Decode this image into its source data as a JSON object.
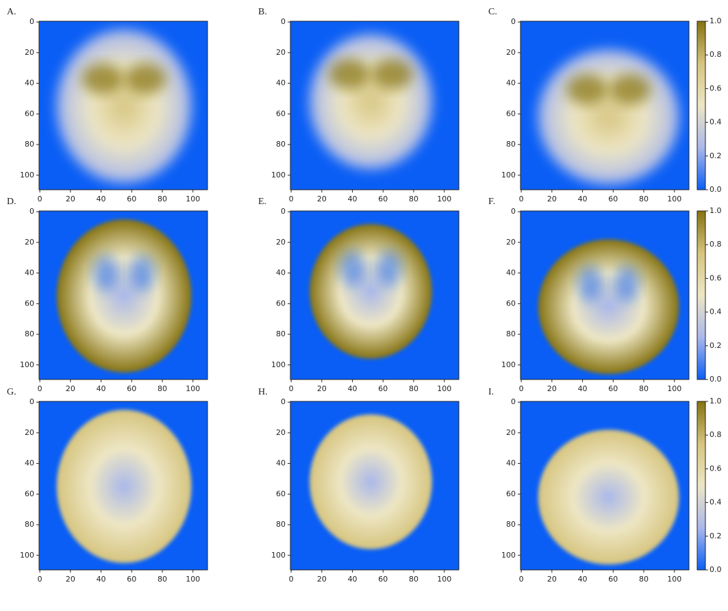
{
  "chart_data": [
    {
      "type": "heatmap",
      "label": "A.",
      "xlim": [
        -0.5,
        109.5
      ],
      "ylim": [
        109.5,
        -0.5
      ],
      "xticks": [
        0,
        20,
        40,
        60,
        80,
        100
      ],
      "yticks": [
        0,
        20,
        40,
        60,
        80,
        100
      ]
    },
    {
      "type": "heatmap",
      "label": "B.",
      "xlim": [
        -0.5,
        109.5
      ],
      "ylim": [
        109.5,
        -0.5
      ],
      "xticks": [
        0,
        20,
        40,
        60,
        80,
        100
      ],
      "yticks": [
        0,
        20,
        40,
        60,
        80,
        100
      ]
    },
    {
      "type": "heatmap",
      "label": "C.",
      "xlim": [
        -0.5,
        109.5
      ],
      "ylim": [
        109.5,
        -0.5
      ],
      "xticks": [
        0,
        20,
        40,
        60,
        80,
        100
      ],
      "yticks": [
        0,
        20,
        40,
        60,
        80,
        100
      ],
      "colorbar": {
        "colormap": [
          "#0a5ef5",
          "#aab8ea",
          "#ede6c4",
          "#d6c47e",
          "#857210"
        ],
        "ylim": [
          0,
          1
        ],
        "yticks": [
          {
            "value": 0,
            "label": "0.0"
          },
          {
            "value": 0.2,
            "label": "0.2"
          },
          {
            "value": 0.4,
            "label": "0.4"
          },
          {
            "value": 0.6,
            "label": "0.6"
          },
          {
            "value": 0.8,
            "label": "0.8"
          },
          {
            "value": 1,
            "label": "1.0"
          }
        ]
      }
    },
    {
      "type": "heatmap",
      "label": "D.",
      "xlim": [
        -0.5,
        109.5
      ],
      "ylim": [
        109.5,
        -0.5
      ],
      "xticks": [
        0,
        20,
        40,
        60,
        80,
        100
      ],
      "yticks": [
        0,
        20,
        40,
        60,
        80,
        100
      ]
    },
    {
      "type": "heatmap",
      "label": "E.",
      "xlim": [
        -0.5,
        109.5
      ],
      "ylim": [
        109.5,
        -0.5
      ],
      "xticks": [
        0,
        20,
        40,
        60,
        80,
        100
      ],
      "yticks": [
        0,
        20,
        40,
        60,
        80,
        100
      ]
    },
    {
      "type": "heatmap",
      "label": "F.",
      "xlim": [
        -0.5,
        109.5
      ],
      "ylim": [
        109.5,
        -0.5
      ],
      "xticks": [
        0,
        20,
        40,
        60,
        80,
        100
      ],
      "yticks": [
        0,
        20,
        40,
        60,
        80,
        100
      ],
      "colorbar": {
        "colormap": [
          "#0a5ef5",
          "#aab8ea",
          "#ede6c4",
          "#d6c47e",
          "#857210"
        ],
        "ylim": [
          0,
          1
        ],
        "yticks": [
          {
            "value": 0,
            "label": "0.0"
          },
          {
            "value": 0.2,
            "label": "0.2"
          },
          {
            "value": 0.4,
            "label": "0.4"
          },
          {
            "value": 0.6,
            "label": "0.6"
          },
          {
            "value": 0.8,
            "label": "0.8"
          },
          {
            "value": 1,
            "label": "1.0"
          }
        ]
      }
    },
    {
      "type": "heatmap",
      "label": "G.",
      "xlim": [
        -0.5,
        109.5
      ],
      "ylim": [
        109.5,
        -0.5
      ],
      "xticks": [
        0,
        20,
        40,
        60,
        80,
        100
      ],
      "yticks": [
        0,
        20,
        40,
        60,
        80,
        100
      ]
    },
    {
      "type": "heatmap",
      "label": "H.",
      "xlim": [
        -0.5,
        109.5
      ],
      "ylim": [
        109.5,
        -0.5
      ],
      "xticks": [
        0,
        20,
        40,
        60,
        80,
        100
      ],
      "yticks": [
        0,
        20,
        40,
        60,
        80,
        100
      ]
    },
    {
      "type": "heatmap",
      "label": "I.",
      "xlim": [
        -0.5,
        109.5
      ],
      "ylim": [
        109.5,
        -0.5
      ],
      "xticks": [
        0,
        20,
        40,
        60,
        80,
        100
      ],
      "yticks": [
        0,
        20,
        40,
        60,
        80,
        100
      ],
      "colorbar": {
        "colormap": [
          "#0a5ef5",
          "#aab8ea",
          "#ede6c4",
          "#d6c47e",
          "#857210"
        ],
        "ylim": [
          0,
          1
        ],
        "yticks": [
          {
            "value": 0,
            "label": "0.0"
          },
          {
            "value": 0.2,
            "label": "0.2"
          },
          {
            "value": 0.4,
            "label": "0.4"
          },
          {
            "value": 0.6,
            "label": "0.6"
          },
          {
            "value": 0.8,
            "label": "0.8"
          },
          {
            "value": 1,
            "label": "1.0"
          }
        ]
      }
    }
  ]
}
